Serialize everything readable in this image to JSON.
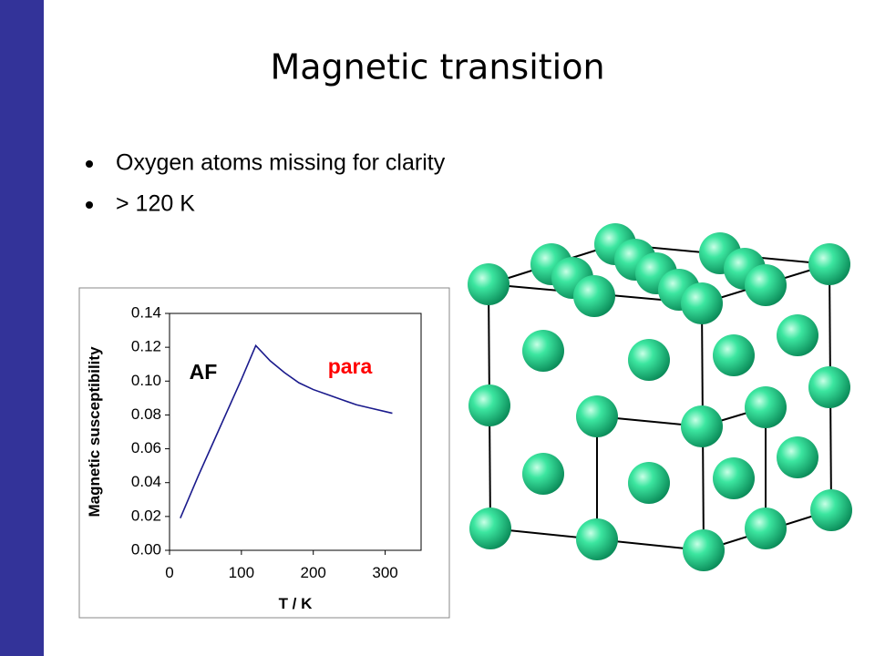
{
  "slide": {
    "title": "Magnetic transition",
    "bullets": [
      "Oxygen atoms missing for clarity",
      "> 120 K"
    ]
  },
  "chart_data": {
    "type": "line",
    "xlabel": "T / K",
    "ylabel": "Magnetic susceptibility",
    "annotations": [
      {
        "text": "AF",
        "color": "#000000"
      },
      {
        "text": "para",
        "color": "#ff0000"
      }
    ],
    "x": [
      15,
      40,
      60,
      80,
      100,
      120,
      140,
      160,
      180,
      200,
      220,
      240,
      260,
      280,
      300,
      310
    ],
    "series": [
      {
        "color": "#1a1a8c",
        "values": [
          0.019,
          0.044,
          0.063,
          0.082,
          0.101,
          0.121,
          0.112,
          0.105,
          0.099,
          0.095,
          0.092,
          0.089,
          0.086,
          0.084,
          0.082,
          0.081
        ]
      }
    ],
    "xlim": [
      0,
      350
    ],
    "xticks": [
      0,
      100,
      200,
      300
    ],
    "ylim": [
      0,
      0.14
    ],
    "yticks": [
      {
        "value": 0,
        "label": "0.00"
      },
      0.02,
      0.04,
      0.06,
      0.08,
      {
        "value": 0.1,
        "label": "0.10"
      },
      0.12,
      0.14
    ]
  }
}
